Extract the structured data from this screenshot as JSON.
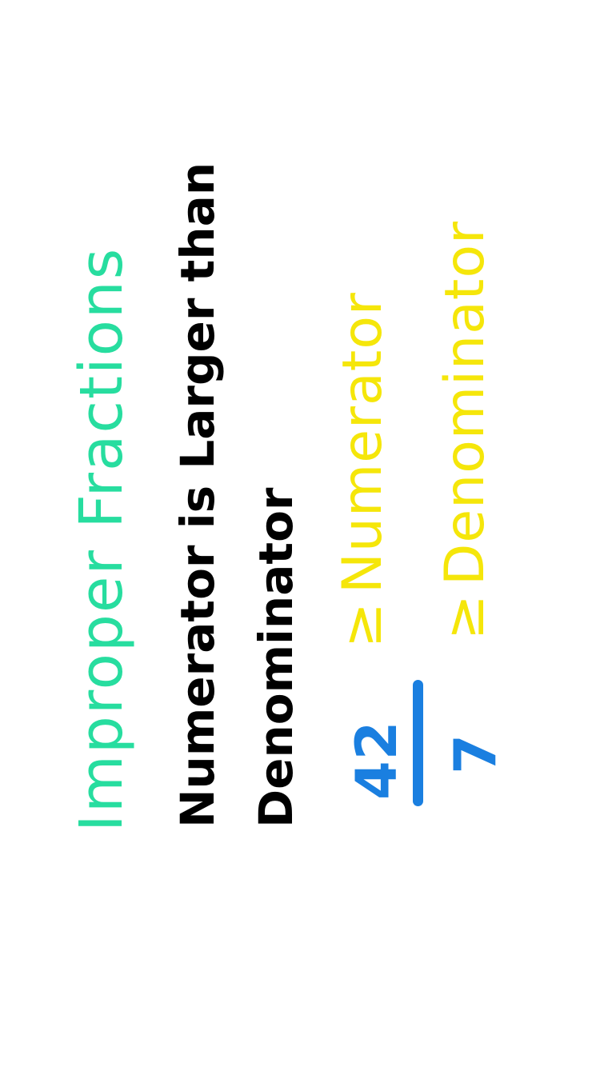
{
  "title": "Improper Fractions",
  "definition": {
    "line1": "Numerator is Larger than",
    "line2": "Denominator"
  },
  "example": {
    "numerator": "42",
    "denominator": "7"
  },
  "annotations": {
    "numerator_symbol": "≥",
    "numerator_label": "Numerator",
    "denominator_symbol": "≥",
    "denominator_label": "Denominator"
  },
  "colors": {
    "title": "#27dd9f",
    "definition": "#000000",
    "fraction": "#1a7fe0",
    "annotation": "#f5e60a",
    "background": "#ffffff"
  }
}
